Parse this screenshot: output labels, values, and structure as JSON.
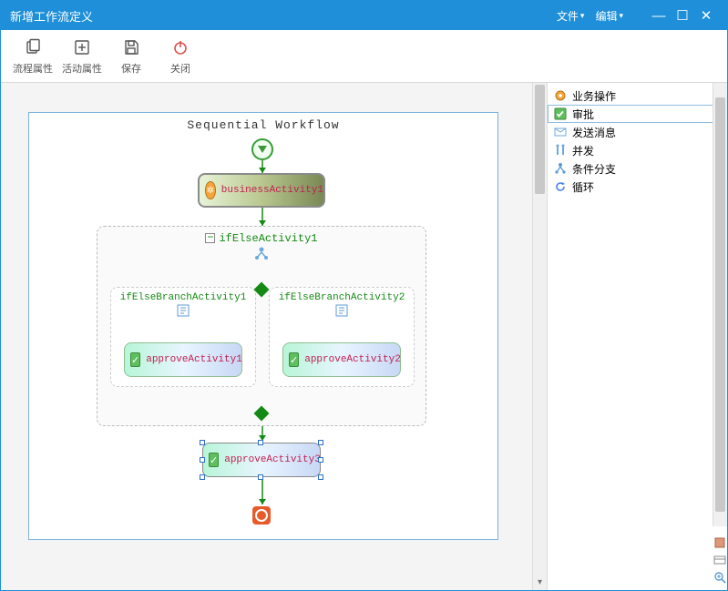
{
  "window": {
    "title": "新增工作流定义"
  },
  "menu": {
    "file": "文件",
    "edit": "编辑"
  },
  "toolbar": {
    "flow_props": "流程属性",
    "activity_props": "活动属性",
    "save": "保存",
    "close": "关闭"
  },
  "diagram": {
    "title": "Sequential Workflow",
    "business_activity": "businessActivity1",
    "ifelse": "ifElseActivity1",
    "branch1": "ifElseBranchActivity1",
    "branch2": "ifElseBranchActivity2",
    "approve1": "approveActivity1",
    "approve2": "approveActivity2",
    "approve3": "approveActivity3"
  },
  "palette": {
    "items": [
      {
        "label": "业务操作",
        "icon": "gear",
        "color": "#f4a63a"
      },
      {
        "label": "审批",
        "icon": "check",
        "color": "#5fbf5f",
        "selected": true
      },
      {
        "label": "发送消息",
        "icon": "mail",
        "color": "#6fa8dc"
      },
      {
        "label": "并发",
        "icon": "parallel",
        "color": "#6fa8dc"
      },
      {
        "label": "条件分支",
        "icon": "branch",
        "color": "#5b9bd5"
      },
      {
        "label": "循环",
        "icon": "loop",
        "color": "#4a86e8"
      }
    ]
  },
  "colors": {
    "primary": "#1e8fd8",
    "flow_line": "#148a14",
    "node_text": "#c02050"
  }
}
